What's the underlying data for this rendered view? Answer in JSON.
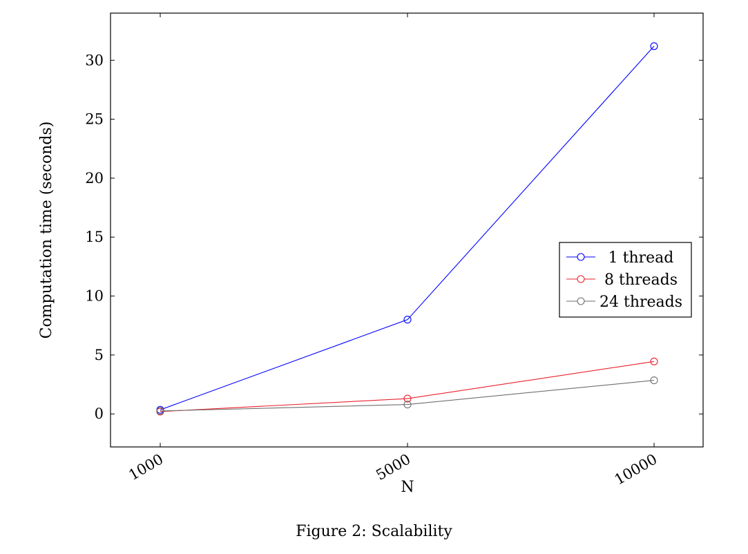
{
  "caption": "Figure 2: Scalability",
  "chart_data": {
    "type": "line",
    "title": "",
    "xlabel": "N",
    "ylabel": "Computation time (seconds)",
    "x": [
      1000,
      5000,
      10000
    ],
    "x_tick_labels": [
      "1000",
      "5000",
      "10000"
    ],
    "x_axis": "categorical",
    "ylim": [
      -2.8,
      34
    ],
    "y_ticks": [
      0,
      5,
      10,
      15,
      20,
      25,
      30
    ],
    "grid": false,
    "legend_position": "right",
    "series": [
      {
        "name": "1 thread",
        "color": "#0000ff",
        "values": [
          0.35,
          8.0,
          31.2
        ]
      },
      {
        "name": "8 threads",
        "color": "#e8202a",
        "values": [
          0.2,
          1.3,
          4.45
        ]
      },
      {
        "name": "24 threads",
        "color": "#6e6e6e",
        "values": [
          0.25,
          0.8,
          2.85
        ]
      }
    ]
  }
}
